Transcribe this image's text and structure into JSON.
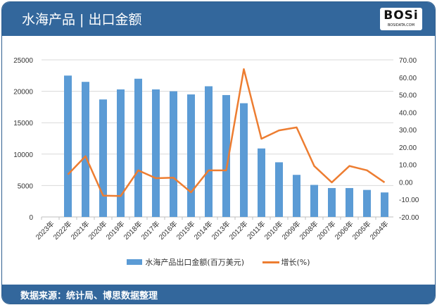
{
  "header": {
    "title": "水海产品 | 出口金额",
    "logo_text": "BOSi",
    "logo_sub": "BOSIDATA.COM"
  },
  "footer": {
    "source": "数据来源：统计局、博思数据整理"
  },
  "colors": {
    "bar": "#5b9bd5",
    "line": "#ed7d31",
    "header": "#33679c"
  },
  "chart_data": {
    "type": "bar+line",
    "title": "水海产品 | 出口金额",
    "categories": [
      "2023年",
      "2022年",
      "2021年",
      "2020年",
      "2019年",
      "2018年",
      "2017年",
      "2016年",
      "2015年",
      "2014年",
      "2013年",
      "2012年",
      "2011年",
      "2010年",
      "2009年",
      "2008年",
      "2007年",
      "2006年",
      "2005年",
      "2004年"
    ],
    "series": [
      {
        "name": "水海产品出口金额(百万美元)",
        "type": "bar",
        "axis": "left",
        "values": [
          null,
          22500,
          21500,
          18700,
          20300,
          22000,
          20300,
          20000,
          19500,
          20800,
          19400,
          18100,
          10900,
          8700,
          6700,
          5100,
          4600,
          4600,
          4300,
          3900
        ]
      },
      {
        "name": "增长(%)",
        "type": "line",
        "axis": "right",
        "values": [
          null,
          4.3,
          14.8,
          -7.8,
          -8.0,
          6.7,
          2.2,
          2.5,
          -5.9,
          6.7,
          6.7,
          64.7,
          24.8,
          29.6,
          31.3,
          9.2,
          -0.2,
          9.2,
          6.7,
          -0.2
        ]
      }
    ],
    "y_left": {
      "min": 0,
      "max": 25000,
      "ticks": [
        "0",
        "5000",
        "10000",
        "15000",
        "20000",
        "25000"
      ]
    },
    "y_right": {
      "min": -20,
      "max": 70,
      "ticks": [
        "-20.00",
        "-10.00",
        "0.00",
        "10.00",
        "20.00",
        "30.00",
        "40.00",
        "50.00",
        "60.00",
        "70.00"
      ]
    },
    "grid": true,
    "legend": "bottom"
  }
}
